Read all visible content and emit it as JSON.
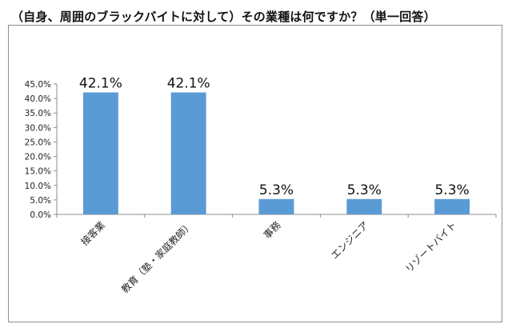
{
  "chart_data": {
    "type": "bar",
    "title": "（自身、周囲のブラックバイトに対して）その業種は何ですか？（単一回答）",
    "categories": [
      "接客業",
      "教育（塾・家庭教師）",
      "事務",
      "エンジニア",
      "リゾートバイト"
    ],
    "values": [
      42.1,
      42.1,
      5.3,
      5.3,
      5.3
    ],
    "data_labels": [
      "42.1%",
      "42.1%",
      "5.3%",
      "5.3%",
      "5.3%"
    ],
    "y_ticks": [
      "0.0%",
      "5.0%",
      "10.0%",
      "15.0%",
      "20.0%",
      "25.0%",
      "30.0%",
      "35.0%",
      "40.0%",
      "45.0%"
    ],
    "ylim": [
      0,
      45
    ],
    "xlabel": "",
    "ylabel": "",
    "grid": false,
    "legend": "none",
    "bar_color": "#5b9bd5",
    "axis_color": "#8c8c8c"
  }
}
